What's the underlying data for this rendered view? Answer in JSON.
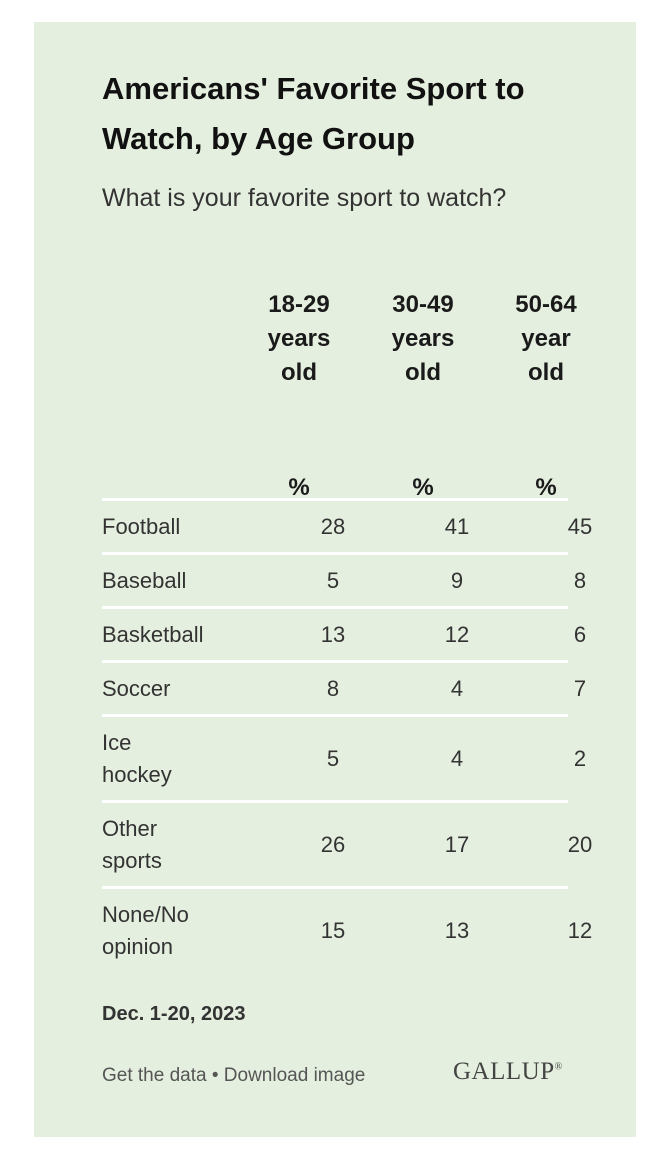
{
  "header": {
    "title": "Americans' Favorite Sport to Watch, by Age Group",
    "subtitle": "What is your favorite sport to watch?"
  },
  "table": {
    "columns": [
      "18-29 years old",
      "30-49 years old",
      "50-64 year old"
    ],
    "units": [
      "%",
      "%",
      "%"
    ],
    "rows": [
      [
        "Football",
        28,
        41,
        45
      ],
      [
        "Baseball",
        5,
        9,
        8
      ],
      [
        "Basketball",
        13,
        12,
        6
      ],
      [
        "Soccer",
        8,
        4,
        7
      ],
      [
        "Ice hockey",
        5,
        4,
        2
      ],
      [
        "Other sports",
        26,
        17,
        20
      ],
      [
        "None/No opinion",
        15,
        13,
        12
      ]
    ]
  },
  "footer": {
    "date": "Dec. 1-20, 2023",
    "links": [
      "Get the data",
      "Download image"
    ],
    "separator": "•",
    "logo": "GALLUP",
    "trademark": "®"
  }
}
